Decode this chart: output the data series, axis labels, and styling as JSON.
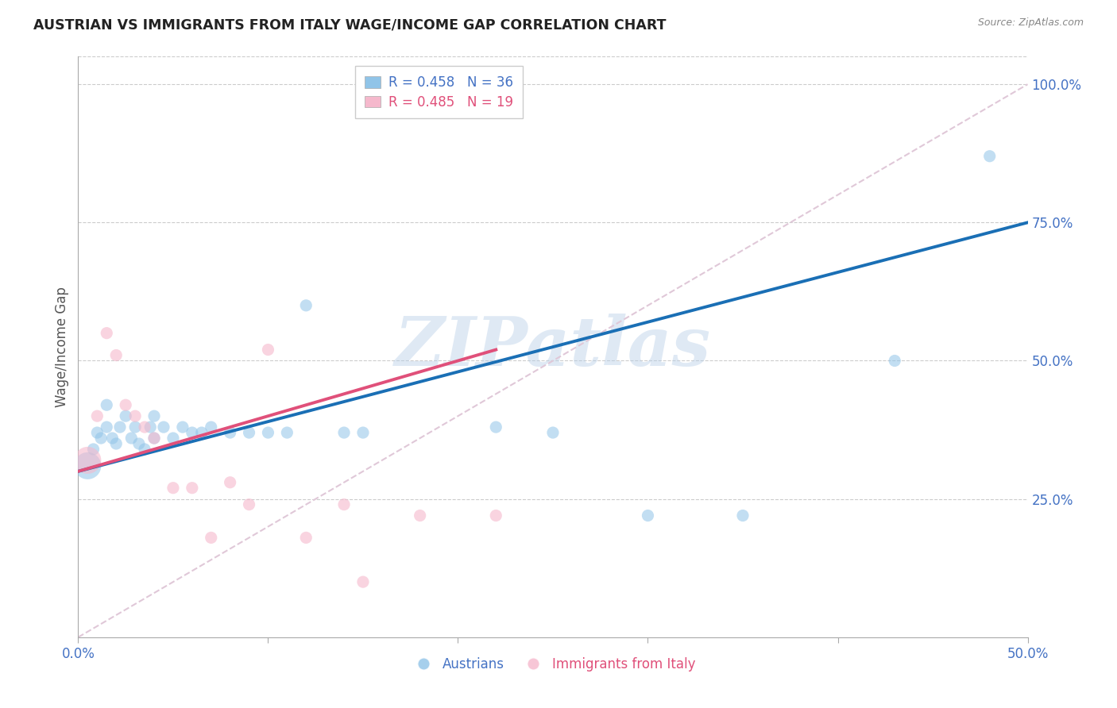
{
  "title": "AUSTRIAN VS IMMIGRANTS FROM ITALY WAGE/INCOME GAP CORRELATION CHART",
  "source": "Source: ZipAtlas.com",
  "ylabel": "Wage/Income Gap",
  "ytick_labels": [
    "25.0%",
    "50.0%",
    "75.0%",
    "100.0%"
  ],
  "ytick_vals": [
    0.25,
    0.5,
    0.75,
    1.0
  ],
  "xlim": [
    0.0,
    0.5
  ],
  "ylim": [
    0.0,
    1.05
  ],
  "legend_blue_label": "R = 0.458   N = 36",
  "legend_pink_label": "R = 0.485   N = 19",
  "legend_cat1": "Austrians",
  "legend_cat2": "Immigrants from Italy",
  "watermark": "ZIPatlas",
  "blue_color": "#90c4e8",
  "pink_color": "#f5b8cc",
  "blue_line_color": "#1a6fb5",
  "pink_line_color": "#e0507a",
  "diag_color": "#e0c8d8",
  "blue_scatter_x": [
    0.005,
    0.008,
    0.01,
    0.012,
    0.015,
    0.015,
    0.018,
    0.02,
    0.022,
    0.025,
    0.028,
    0.03,
    0.032,
    0.035,
    0.038,
    0.04,
    0.04,
    0.045,
    0.05,
    0.055,
    0.06,
    0.065,
    0.07,
    0.08,
    0.09,
    0.1,
    0.11,
    0.12,
    0.14,
    0.15,
    0.22,
    0.25,
    0.3,
    0.35,
    0.43,
    0.48
  ],
  "blue_scatter_y": [
    0.31,
    0.34,
    0.37,
    0.36,
    0.38,
    0.42,
    0.36,
    0.35,
    0.38,
    0.4,
    0.36,
    0.38,
    0.35,
    0.34,
    0.38,
    0.36,
    0.4,
    0.38,
    0.36,
    0.38,
    0.37,
    0.37,
    0.38,
    0.37,
    0.37,
    0.37,
    0.37,
    0.6,
    0.37,
    0.37,
    0.38,
    0.37,
    0.22,
    0.22,
    0.5,
    0.87
  ],
  "blue_scatter_sizes": [
    600,
    120,
    120,
    120,
    120,
    120,
    120,
    120,
    120,
    120,
    120,
    120,
    120,
    120,
    120,
    120,
    120,
    120,
    120,
    120,
    120,
    120,
    120,
    120,
    120,
    120,
    120,
    120,
    120,
    120,
    120,
    120,
    120,
    120,
    120,
    120
  ],
  "pink_scatter_x": [
    0.005,
    0.01,
    0.015,
    0.02,
    0.025,
    0.03,
    0.035,
    0.04,
    0.05,
    0.06,
    0.07,
    0.08,
    0.09,
    0.1,
    0.12,
    0.14,
    0.15,
    0.18,
    0.22
  ],
  "pink_scatter_y": [
    0.32,
    0.4,
    0.55,
    0.51,
    0.42,
    0.4,
    0.38,
    0.36,
    0.27,
    0.27,
    0.18,
    0.28,
    0.24,
    0.52,
    0.18,
    0.24,
    0.1,
    0.22,
    0.22
  ],
  "pink_scatter_sizes": [
    600,
    120,
    120,
    120,
    120,
    120,
    120,
    120,
    120,
    120,
    120,
    120,
    120,
    120,
    120,
    120,
    120,
    120,
    120
  ],
  "blue_line_x": [
    0.0,
    0.5
  ],
  "blue_line_y": [
    0.3,
    0.75
  ],
  "pink_line_x": [
    0.0,
    0.22
  ],
  "pink_line_y": [
    0.3,
    0.52
  ],
  "diag_line_x": [
    0.0,
    0.5
  ],
  "diag_line_y": [
    0.0,
    1.0
  ],
  "xtick_positions": [
    0.0,
    0.1,
    0.2,
    0.3,
    0.4,
    0.5
  ]
}
